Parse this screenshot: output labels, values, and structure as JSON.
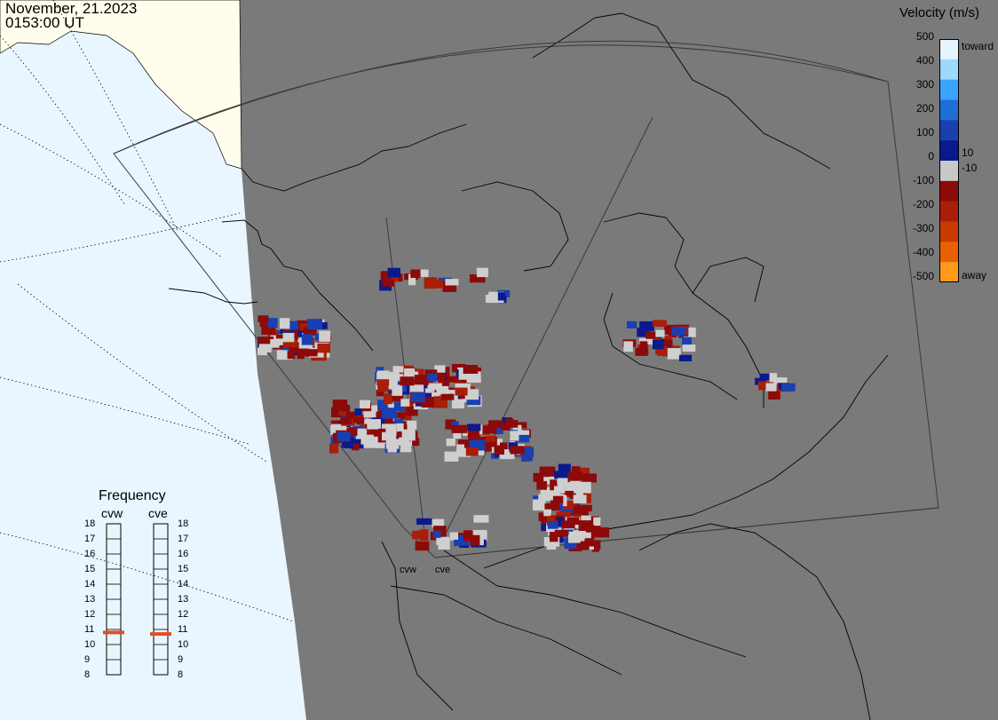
{
  "header": {
    "date": "November, 21.2023",
    "time": "0153:00 UT"
  },
  "colorbar": {
    "title": "Velocity (m/s)",
    "ticks": [
      "500",
      "400",
      "300",
      "200",
      "100",
      "0",
      "-100",
      "-200",
      "-300",
      "-400",
      "-500"
    ],
    "tick_values": [
      500,
      400,
      300,
      200,
      100,
      0,
      -100,
      -200,
      -300,
      -400,
      -500
    ],
    "extra_labels": {
      "toward": "toward",
      "away": "away",
      "plus10": "10",
      "minus10": "-10"
    },
    "toward_colors": [
      "#e6f4ff",
      "#9fd8ff",
      "#3aa4ff",
      "#1e6fd8",
      "#1a3fb0",
      "#0a1a8c"
    ],
    "away_colors": [
      "#8c0a0a",
      "#a81e08",
      "#c83a00",
      "#e86000",
      "#ff9a1a",
      "#ffd8b8"
    ],
    "zero_color": "#c8c8c8"
  },
  "frequency": {
    "title": "Frequency",
    "radars": [
      {
        "name": "cvw",
        "current_mhz": 10.8
      },
      {
        "name": "cve",
        "current_mhz": 10.7
      }
    ],
    "scale": [
      "18",
      "17",
      "16",
      "15",
      "14",
      "13",
      "12",
      "11",
      "10",
      "9",
      "8"
    ],
    "marker_color": "#e05020"
  },
  "sites": {
    "cvw": "cvw",
    "cve": "cve"
  },
  "colors": {
    "ground_scatter": "#cfcfcf",
    "night": "#7a7a7a",
    "day_land": "#fffdeb",
    "day_ocean": "#eaf6ff",
    "coastline": "#000000"
  }
}
